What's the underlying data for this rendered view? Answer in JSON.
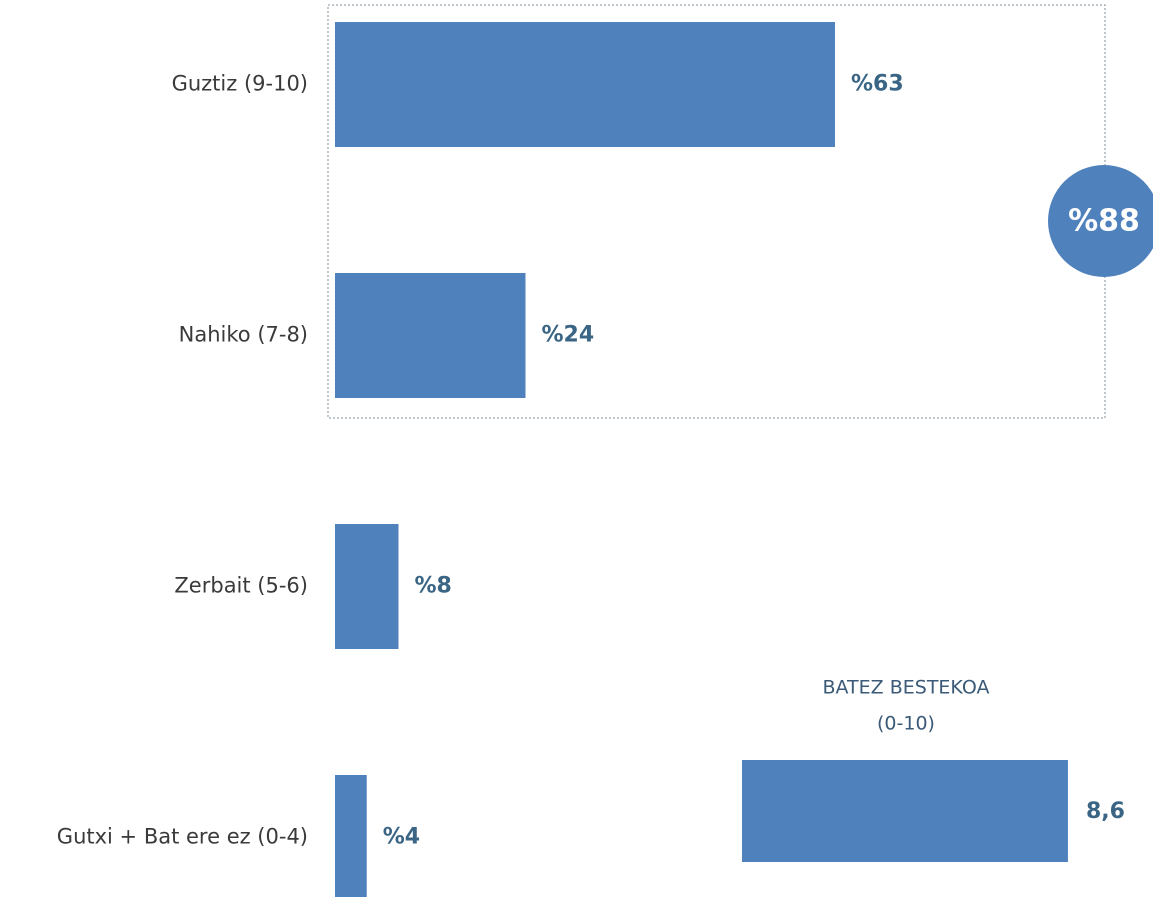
{
  "chart_data": {
    "type": "bar",
    "orientation": "horizontal",
    "categories": [
      "Guztiz (9-10)",
      "Nahiko (7-8)",
      "Zerbait (5-6)",
      "Gutxi + Bat ere ez (0-4)"
    ],
    "values": [
      63,
      24,
      8,
      4
    ],
    "value_labels": [
      "%63",
      "%24",
      "%8",
      "%4"
    ],
    "color": "#4f81bd",
    "total": 88,
    "total_label": "%88",
    "mean_title": [
      "BATEZ BESTEKOA",
      "(0-10)"
    ],
    "mean": 8.6,
    "mean_label": "8,6",
    "mean_xlim": [
      0,
      10
    ]
  }
}
